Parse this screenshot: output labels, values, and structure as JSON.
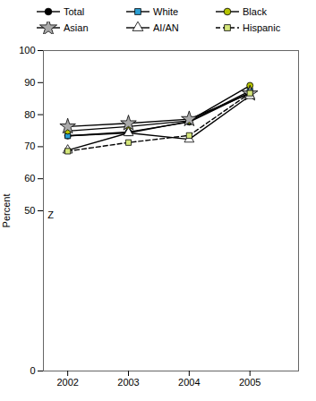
{
  "chart_data": {
    "type": "line",
    "x": [
      2002,
      2003,
      2004,
      2005
    ],
    "series": [
      {
        "name": "Total",
        "color": "#000000",
        "marker": "circle",
        "line_style": "solid",
        "values": [
          73.4,
          74.6,
          77.7,
          86.9
        ]
      },
      {
        "name": "White",
        "color": "#2b9fd4",
        "marker": "square",
        "line_style": "solid",
        "values": [
          73.4,
          74.3,
          77.9,
          87.4
        ]
      },
      {
        "name": "Black",
        "color": "#b5c400",
        "marker": "circle",
        "line_style": "solid",
        "values": [
          74.9,
          76.3,
          78.1,
          89.1
        ]
      },
      {
        "name": "Asian",
        "color": "#aaaaaa",
        "marker": "star",
        "line_style": "solid",
        "values": [
          76.3,
          77.3,
          78.6,
          86.6
        ]
      },
      {
        "name": "AI/AN",
        "color": "#ffffff",
        "marker": "triangle",
        "line_style": "solid",
        "values": [
          68.9,
          74.3,
          72.3,
          85.9
        ]
      },
      {
        "name": "Hispanic",
        "color": "#d4e67a",
        "marker": "square",
        "line_style": "dashed",
        "values": [
          68.6,
          71.3,
          73.5,
          86.7
        ]
      }
    ],
    "ylabel": "Percent",
    "xlim": [
      2001.6,
      2005.8
    ],
    "xticks": [
      2002,
      2003,
      2004,
      2005
    ],
    "ylim": [
      0,
      100
    ],
    "yticks": [
      0,
      50,
      60,
      70,
      80,
      90,
      100
    ],
    "annotations": [
      {
        "text": "Z",
        "x": 2001.67,
        "y": 48.5
      }
    ],
    "grid": false,
    "legend": "top"
  }
}
